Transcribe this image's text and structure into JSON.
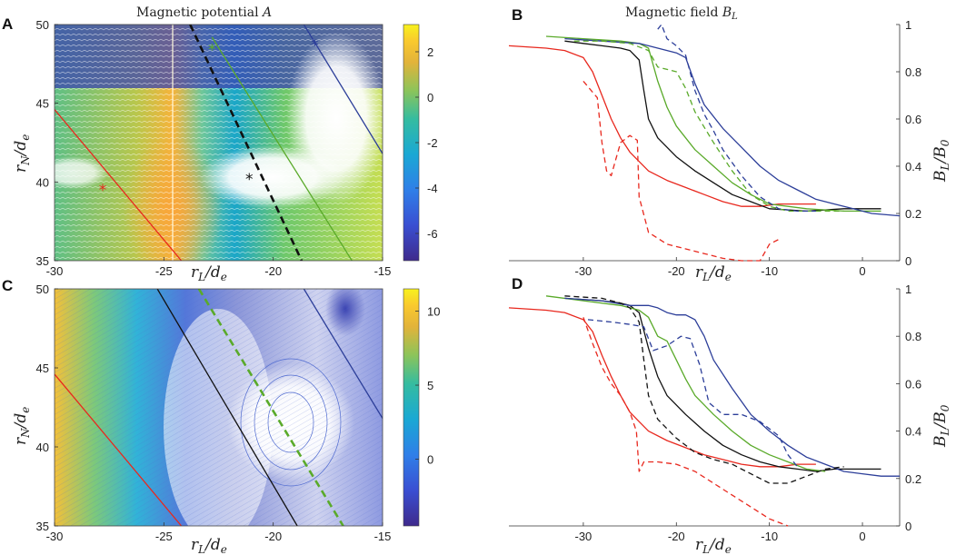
{
  "panel_labels": {
    "A": "A",
    "B": "B",
    "C": "C",
    "D": "D"
  },
  "chart_data": [
    {
      "id": "A",
      "type": "heatmap",
      "title": "Magnetic potential A",
      "title_text": "Magnetic potential ",
      "title_var": "A",
      "xlabel_main": "r",
      "xlabel_sub": "L",
      "xlabel_rest": "/d",
      "xlabel_sub2": "e",
      "ylabel_main": "r",
      "ylabel_sub": "N",
      "ylabel_rest": "/d",
      "ylabel_sub2": "e",
      "xlim": [
        -30,
        -15
      ],
      "ylim": [
        35,
        50
      ],
      "xticks": [
        "-30",
        "-25",
        "-20",
        "-15"
      ],
      "xtick_values": [
        -30,
        -25,
        -20,
        -15
      ],
      "yticks": [
        "35",
        "40",
        "45",
        "50"
      ],
      "ytick_values": [
        35,
        40,
        45,
        50
      ],
      "colorbar": {
        "min": -7.2,
        "max": 3.2,
        "ticks": [
          "2",
          "0",
          "-2",
          "-4",
          "-6"
        ],
        "tick_values": [
          2,
          0,
          -2,
          -4,
          -6
        ]
      },
      "lines": [
        {
          "name": "red",
          "color": "#e8281e",
          "style": "solid",
          "points": [
            [
              -30,
              44.6
            ],
            [
              -24.2,
              35
            ]
          ]
        },
        {
          "name": "black",
          "color": "#111111",
          "style": "dashed",
          "points": [
            [
              -23.8,
              50
            ],
            [
              -18.7,
              35
            ]
          ]
        },
        {
          "name": "green",
          "color": "#5aaa2a",
          "style": "solid",
          "points": [
            [
              -22.8,
              49.2
            ],
            [
              -16.4,
              35
            ]
          ]
        },
        {
          "name": "blue",
          "color": "#2c3e99",
          "style": "solid",
          "points": [
            [
              -18.6,
              50
            ],
            [
              -15,
              41.8
            ]
          ]
        }
      ],
      "markers": [
        {
          "name": "red",
          "color": "#e8281e",
          "x": -27.8,
          "y": 39.5
        },
        {
          "name": "black",
          "color": "#111111",
          "x": -21.1,
          "y": 40.2
        },
        {
          "name": "green",
          "color": "#5aaa2a",
          "x": -22.8,
          "y": 48.4
        },
        {
          "name": "blue",
          "color": "#2c3e99",
          "x": -18.1,
          "y": 48.7
        }
      ]
    },
    {
      "id": "B",
      "type": "line",
      "title_text": "Magnetic field ",
      "title_var": "B",
      "title_sub": "L",
      "xlabel_main": "r",
      "xlabel_sub": "L",
      "xlabel_rest": "/d",
      "xlabel_sub2": "e",
      "ylabel_main": "B",
      "ylabel_sub": "L",
      "ylabel_rest": "/B",
      "ylabel_sub2": "0",
      "xlim": [
        -38,
        4
      ],
      "ylim": [
        0,
        1
      ],
      "xticks": [
        "-30",
        "-20",
        "-10",
        "0"
      ],
      "xtick_values": [
        -30,
        -20,
        -10,
        0
      ],
      "yticks": [
        "0",
        "0.2",
        "0.4",
        "0.6",
        "0.8",
        "1"
      ],
      "ytick_values": [
        0,
        0.2,
        0.4,
        0.6,
        0.8,
        1
      ],
      "series": [
        {
          "name": "red solid",
          "color": "#e8281e",
          "style": "solid",
          "x": [
            -38,
            -34,
            -32,
            -30,
            -29,
            -28,
            -27,
            -26,
            -25,
            -24,
            -23,
            -21,
            -19,
            -17,
            -15,
            -13,
            -11,
            -9,
            -7,
            -5
          ],
          "y": [
            0.91,
            0.9,
            0.89,
            0.86,
            0.8,
            0.7,
            0.6,
            0.52,
            0.46,
            0.42,
            0.38,
            0.34,
            0.31,
            0.28,
            0.25,
            0.23,
            0.23,
            0.24,
            0.24,
            0.24
          ]
        },
        {
          "name": "black solid",
          "color": "#111111",
          "style": "solid",
          "x": [
            -32,
            -30,
            -28,
            -26,
            -25,
            -24,
            -23.5,
            -23,
            -22,
            -20,
            -18,
            -16,
            -14,
            -12,
            -10,
            -6,
            -2,
            2
          ],
          "y": [
            0.93,
            0.92,
            0.91,
            0.9,
            0.89,
            0.85,
            0.72,
            0.6,
            0.52,
            0.44,
            0.38,
            0.33,
            0.28,
            0.25,
            0.22,
            0.21,
            0.22,
            0.22
          ]
        },
        {
          "name": "green solid",
          "color": "#5aaa2a",
          "style": "solid",
          "x": [
            -34,
            -30,
            -26,
            -24,
            -23,
            -22,
            -21,
            -20,
            -18,
            -16,
            -14,
            -12,
            -10,
            -6,
            -2,
            2
          ],
          "y": [
            0.95,
            0.94,
            0.93,
            0.92,
            0.9,
            0.76,
            0.65,
            0.57,
            0.47,
            0.4,
            0.33,
            0.28,
            0.24,
            0.22,
            0.21,
            0.21
          ]
        },
        {
          "name": "blue solid",
          "color": "#2c3e99",
          "style": "solid",
          "x": [
            -32,
            -28,
            -24,
            -22,
            -20,
            -19,
            -18,
            -17,
            -15,
            -13,
            -11,
            -9,
            -7,
            -5,
            -3,
            -1,
            1,
            4
          ],
          "y": [
            0.94,
            0.93,
            0.92,
            0.9,
            0.88,
            0.86,
            0.75,
            0.66,
            0.56,
            0.48,
            0.4,
            0.34,
            0.3,
            0.26,
            0.24,
            0.22,
            0.2,
            0.19
          ]
        },
        {
          "name": "red dashed",
          "color": "#e8281e",
          "style": "dashed",
          "x": [
            -30,
            -28.5,
            -28,
            -27.5,
            -27,
            -26.5,
            -26,
            -25,
            -24.2,
            -24,
            -23,
            -21,
            -19,
            -17,
            -15,
            -13,
            -11,
            -10,
            -9
          ],
          "y": [
            0.76,
            0.69,
            0.5,
            0.38,
            0.36,
            0.43,
            0.5,
            0.53,
            0.51,
            0.27,
            0.12,
            0.07,
            0.05,
            0.03,
            0.01,
            0.0,
            0.0,
            0.07,
            0.09
          ]
        },
        {
          "name": "green dashed",
          "color": "#5aaa2a",
          "style": "dashed",
          "x": [
            -31,
            -28,
            -25,
            -23,
            -22,
            -20,
            -19,
            -18,
            -16,
            -14,
            -12,
            -10,
            -8,
            -6,
            -4,
            -2
          ],
          "y": [
            0.93,
            0.93,
            0.92,
            0.89,
            0.82,
            0.8,
            0.73,
            0.63,
            0.5,
            0.38,
            0.28,
            0.23,
            0.21,
            0.21,
            0.21,
            0.21
          ]
        },
        {
          "name": "blue dashed",
          "color": "#2c3e99",
          "style": "dashed",
          "x": [
            -22,
            -21.6,
            -21,
            -20,
            -19,
            -18,
            -17,
            -16,
            -15,
            -13,
            -11,
            -9,
            -7,
            -5
          ],
          "y": [
            0.98,
            1.0,
            0.94,
            0.91,
            0.87,
            0.72,
            0.62,
            0.55,
            0.47,
            0.36,
            0.27,
            0.22,
            0.21,
            0.21
          ]
        }
      ]
    },
    {
      "id": "C",
      "type": "heatmap",
      "xlabel_main": "r",
      "xlabel_sub": "L",
      "xlabel_rest": "/d",
      "xlabel_sub2": "e",
      "ylabel_main": "r",
      "ylabel_sub": "N",
      "ylabel_rest": "/d",
      "ylabel_sub2": "e",
      "xlim": [
        -30,
        -15
      ],
      "ylim": [
        35,
        50
      ],
      "xticks": [
        "-30",
        "-25",
        "-20",
        "-15"
      ],
      "xtick_values": [
        -30,
        -25,
        -20,
        -15
      ],
      "yticks": [
        "35",
        "40",
        "45",
        "50"
      ],
      "ytick_values": [
        35,
        40,
        45,
        50
      ],
      "colorbar": {
        "min": -4.5,
        "max": 11.5,
        "ticks": [
          "10",
          "5",
          "0"
        ],
        "tick_values": [
          10,
          5,
          0
        ]
      },
      "lines": [
        {
          "name": "red",
          "color": "#e8281e",
          "style": "solid",
          "points": [
            [
              -30,
              44.6
            ],
            [
              -24.2,
              35
            ]
          ]
        },
        {
          "name": "black",
          "color": "#111111",
          "style": "solid",
          "points": [
            [
              -25.3,
              50
            ],
            [
              -18.9,
              35
            ]
          ]
        },
        {
          "name": "green",
          "color": "#5aaa2a",
          "style": "dashed",
          "points": [
            [
              -23.4,
              50
            ],
            [
              -16.8,
              35
            ]
          ]
        },
        {
          "name": "blue",
          "color": "#2c3e99",
          "style": "solid",
          "points": [
            [
              -18.6,
              50
            ],
            [
              -15,
              41.8
            ]
          ]
        }
      ]
    },
    {
      "id": "D",
      "type": "line",
      "xlabel_main": "r",
      "xlabel_sub": "L",
      "xlabel_rest": "/d",
      "xlabel_sub2": "e",
      "ylabel_main": "B",
      "ylabel_sub": "L",
      "ylabel_rest": "/B",
      "ylabel_sub2": "0",
      "xlim": [
        -38,
        4
      ],
      "ylim": [
        0,
        1
      ],
      "xticks": [
        "-30",
        "-20",
        "-10",
        "0"
      ],
      "xtick_values": [
        -30,
        -20,
        -10,
        0
      ],
      "yticks": [
        "0",
        "0.2",
        "0.4",
        "0.6",
        "0.8",
        "1"
      ],
      "ytick_values": [
        0,
        0.2,
        0.4,
        0.6,
        0.8,
        1
      ],
      "series": [
        {
          "name": "red solid",
          "color": "#e8281e",
          "style": "solid",
          "x": [
            -38,
            -34,
            -32,
            -30,
            -29,
            -28,
            -27,
            -26,
            -25,
            -24,
            -23,
            -21,
            -19,
            -17,
            -15,
            -13,
            -11,
            -9,
            -7,
            -5
          ],
          "y": [
            0.92,
            0.91,
            0.9,
            0.87,
            0.82,
            0.72,
            0.63,
            0.55,
            0.48,
            0.44,
            0.4,
            0.36,
            0.33,
            0.3,
            0.28,
            0.26,
            0.25,
            0.25,
            0.26,
            0.26
          ]
        },
        {
          "name": "black solid",
          "color": "#111111",
          "style": "solid",
          "x": [
            -32,
            -28,
            -26,
            -25,
            -24,
            -23,
            -22,
            -21,
            -19,
            -17,
            -15,
            -13,
            -11,
            -9,
            -7,
            -5,
            -3,
            -1,
            2
          ],
          "y": [
            0.96,
            0.95,
            0.94,
            0.93,
            0.9,
            0.75,
            0.63,
            0.55,
            0.47,
            0.4,
            0.34,
            0.3,
            0.27,
            0.25,
            0.24,
            0.23,
            0.24,
            0.24,
            0.24
          ]
        },
        {
          "name": "green solid",
          "color": "#5aaa2a",
          "style": "solid",
          "x": [
            -34,
            -30,
            -26,
            -24,
            -23,
            -22,
            -21,
            -20,
            -19,
            -18,
            -16,
            -14,
            -12,
            -10,
            -8,
            -6,
            -4
          ],
          "y": [
            0.97,
            0.95,
            0.93,
            0.91,
            0.88,
            0.8,
            0.78,
            0.7,
            0.62,
            0.55,
            0.47,
            0.4,
            0.34,
            0.3,
            0.27,
            0.24,
            0.23
          ]
        },
        {
          "name": "blue solid",
          "color": "#2c3e99",
          "style": "solid",
          "x": [
            -32,
            -28,
            -25,
            -23,
            -22,
            -21,
            -20,
            -19,
            -18,
            -17,
            -16,
            -14,
            -12,
            -10,
            -8,
            -6,
            -4,
            -2,
            0,
            2,
            4
          ],
          "y": [
            0.96,
            0.95,
            0.93,
            0.93,
            0.92,
            0.9,
            0.89,
            0.89,
            0.87,
            0.8,
            0.7,
            0.58,
            0.47,
            0.4,
            0.34,
            0.29,
            0.26,
            0.23,
            0.22,
            0.21,
            0.21
          ]
        },
        {
          "name": "red dashed",
          "color": "#e8281e",
          "style": "dashed",
          "x": [
            -30,
            -29,
            -28,
            -27,
            -26,
            -25,
            -24.3,
            -24,
            -23.5,
            -22,
            -20,
            -18,
            -16,
            -14,
            -12,
            -10,
            -8
          ],
          "y": [
            0.88,
            0.77,
            0.67,
            0.6,
            0.55,
            0.48,
            0.4,
            0.23,
            0.27,
            0.27,
            0.26,
            0.23,
            0.18,
            0.13,
            0.08,
            0.03,
            0.0
          ]
        },
        {
          "name": "black dashed",
          "color": "#111111",
          "style": "dashed",
          "x": [
            -32,
            -28,
            -26,
            -25,
            -24,
            -23.5,
            -23,
            -22,
            -20,
            -18,
            -16,
            -14,
            -12,
            -10,
            -8,
            -6,
            -4,
            -2
          ],
          "y": [
            0.97,
            0.96,
            0.94,
            0.92,
            0.86,
            0.7,
            0.55,
            0.45,
            0.37,
            0.31,
            0.28,
            0.26,
            0.22,
            0.18,
            0.18,
            0.21,
            0.24,
            0.25
          ]
        },
        {
          "name": "blue dashed",
          "color": "#2c3e99",
          "style": "dashed",
          "x": [
            -29.5,
            -27,
            -25,
            -23.5,
            -22.5,
            -21,
            -19.5,
            -18.5,
            -17.5,
            -16.5,
            -15,
            -13,
            -11,
            -9,
            -8,
            -7
          ],
          "y": [
            0.87,
            0.86,
            0.85,
            0.84,
            0.74,
            0.76,
            0.8,
            0.79,
            0.68,
            0.52,
            0.47,
            0.47,
            0.44,
            0.38,
            0.3,
            0.25
          ]
        }
      ]
    }
  ]
}
